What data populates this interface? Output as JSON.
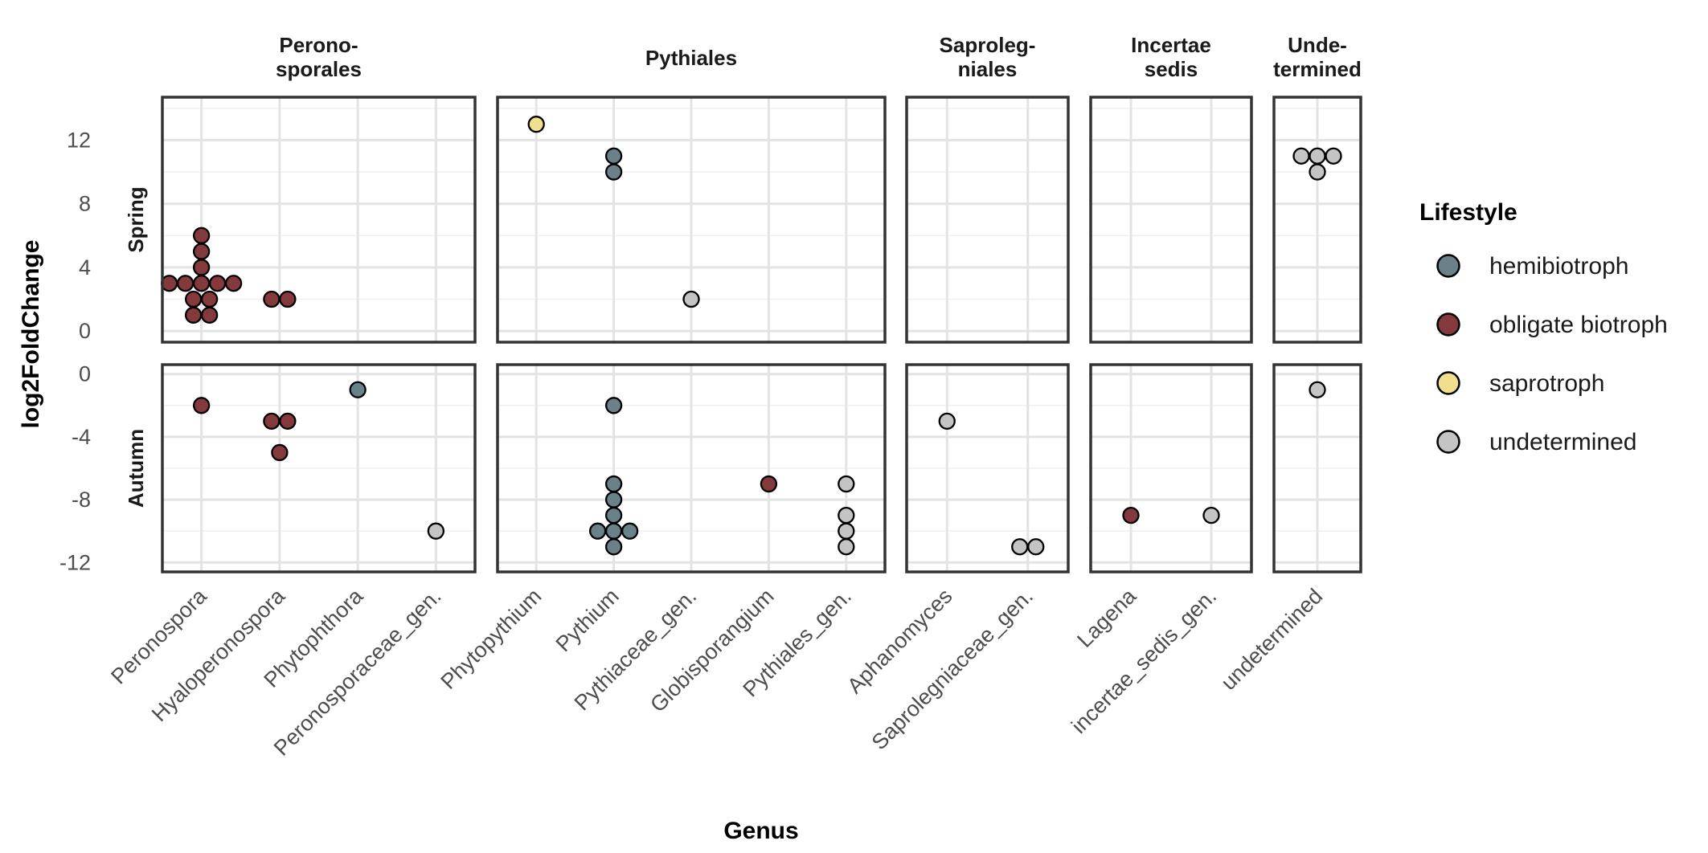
{
  "chart_data": {
    "type": "scatter",
    "xlabel": "Genus",
    "ylabel": "log2FoldChange",
    "legend": {
      "title": "Lifestyle",
      "placement": "right",
      "entries": [
        {
          "name": "hemibiotroph",
          "color": "#6b8189"
        },
        {
          "name": "obligate biotroph",
          "color": "#843a3c"
        },
        {
          "name": "saprotroph",
          "color": "#f0e08e"
        },
        {
          "name": "undetermined",
          "color": "#c4c4c4"
        }
      ]
    },
    "column_facets": [
      {
        "label": "Perono-\nsporales",
        "genera": [
          "Peronospora",
          "Hyaloperonospora",
          "Phytophthora",
          "Peronosporaceae_gen."
        ]
      },
      {
        "label": "Pythiales",
        "genera": [
          "Phytopythium",
          "Pythium",
          "Pythiaceae_gen.",
          "Globisporangium",
          "Pythiales_gen."
        ]
      },
      {
        "label": "Saproleg-\nniales",
        "genera": [
          "Aphanomyces",
          "Saprolegniaceae_gen."
        ]
      },
      {
        "label": "Incertae\nsedis",
        "genera": [
          "Lagena",
          "incertae_sedis_gen."
        ]
      },
      {
        "label": "Unde-\ntermined",
        "genera": [
          "undetermined"
        ]
      }
    ],
    "row_facets": [
      {
        "label": "Spring",
        "ylim": [
          0,
          14
        ],
        "yticks": [
          0,
          4,
          8,
          12
        ]
      },
      {
        "label": "Autumn",
        "ylim": [
          -12,
          0
        ],
        "yticks": [
          0,
          -4,
          -8,
          -12
        ]
      }
    ],
    "points": [
      {
        "season": "Spring",
        "genus": "Peronospora",
        "y": 6,
        "lifestyle": "obligate biotroph"
      },
      {
        "season": "Spring",
        "genus": "Peronospora",
        "y": 5,
        "lifestyle": "obligate biotroph"
      },
      {
        "season": "Spring",
        "genus": "Peronospora",
        "y": 4,
        "lifestyle": "obligate biotroph"
      },
      {
        "season": "Spring",
        "genus": "Peronospora",
        "y": 3,
        "lifestyle": "obligate biotroph"
      },
      {
        "season": "Spring",
        "genus": "Peronospora",
        "y": 3,
        "lifestyle": "obligate biotroph"
      },
      {
        "season": "Spring",
        "genus": "Peronospora",
        "y": 3,
        "lifestyle": "obligate biotroph"
      },
      {
        "season": "Spring",
        "genus": "Peronospora",
        "y": 3,
        "lifestyle": "obligate biotroph"
      },
      {
        "season": "Spring",
        "genus": "Peronospora",
        "y": 3,
        "lifestyle": "obligate biotroph"
      },
      {
        "season": "Spring",
        "genus": "Peronospora",
        "y": 2,
        "lifestyle": "obligate biotroph"
      },
      {
        "season": "Spring",
        "genus": "Peronospora",
        "y": 2,
        "lifestyle": "obligate biotroph"
      },
      {
        "season": "Spring",
        "genus": "Peronospora",
        "y": 1,
        "lifestyle": "obligate biotroph"
      },
      {
        "season": "Spring",
        "genus": "Peronospora",
        "y": 1,
        "lifestyle": "obligate biotroph"
      },
      {
        "season": "Spring",
        "genus": "Hyaloperonospora",
        "y": 2,
        "lifestyle": "obligate biotroph"
      },
      {
        "season": "Spring",
        "genus": "Hyaloperonospora",
        "y": 2,
        "lifestyle": "obligate biotroph"
      },
      {
        "season": "Spring",
        "genus": "Phytopythium",
        "y": 13,
        "lifestyle": "saprotroph"
      },
      {
        "season": "Spring",
        "genus": "Pythium",
        "y": 11,
        "lifestyle": "hemibiotroph"
      },
      {
        "season": "Spring",
        "genus": "Pythium",
        "y": 10,
        "lifestyle": "hemibiotroph"
      },
      {
        "season": "Spring",
        "genus": "Pythiaceae_gen.",
        "y": 2,
        "lifestyle": "undetermined"
      },
      {
        "season": "Spring",
        "genus": "undetermined",
        "y": 11,
        "lifestyle": "undetermined"
      },
      {
        "season": "Spring",
        "genus": "undetermined",
        "y": 11,
        "lifestyle": "undetermined"
      },
      {
        "season": "Spring",
        "genus": "undetermined",
        "y": 11,
        "lifestyle": "undetermined"
      },
      {
        "season": "Spring",
        "genus": "undetermined",
        "y": 10,
        "lifestyle": "undetermined"
      },
      {
        "season": "Autumn",
        "genus": "Peronospora",
        "y": -2,
        "lifestyle": "obligate biotroph"
      },
      {
        "season": "Autumn",
        "genus": "Hyaloperonospora",
        "y": -3,
        "lifestyle": "obligate biotroph"
      },
      {
        "season": "Autumn",
        "genus": "Hyaloperonospora",
        "y": -3,
        "lifestyle": "obligate biotroph"
      },
      {
        "season": "Autumn",
        "genus": "Hyaloperonospora",
        "y": -5,
        "lifestyle": "obligate biotroph"
      },
      {
        "season": "Autumn",
        "genus": "Phytophthora",
        "y": -1,
        "lifestyle": "hemibiotroph"
      },
      {
        "season": "Autumn",
        "genus": "Peronosporaceae_gen.",
        "y": -10,
        "lifestyle": "undetermined"
      },
      {
        "season": "Autumn",
        "genus": "Pythium",
        "y": -2,
        "lifestyle": "hemibiotroph"
      },
      {
        "season": "Autumn",
        "genus": "Pythium",
        "y": -7,
        "lifestyle": "hemibiotroph"
      },
      {
        "season": "Autumn",
        "genus": "Pythium",
        "y": -8,
        "lifestyle": "hemibiotroph"
      },
      {
        "season": "Autumn",
        "genus": "Pythium",
        "y": -9,
        "lifestyle": "hemibiotroph"
      },
      {
        "season": "Autumn",
        "genus": "Pythium",
        "y": -10,
        "lifestyle": "hemibiotroph"
      },
      {
        "season": "Autumn",
        "genus": "Pythium",
        "y": -10,
        "lifestyle": "hemibiotroph"
      },
      {
        "season": "Autumn",
        "genus": "Pythium",
        "y": -10,
        "lifestyle": "hemibiotroph"
      },
      {
        "season": "Autumn",
        "genus": "Pythium",
        "y": -11,
        "lifestyle": "hemibiotroph"
      },
      {
        "season": "Autumn",
        "genus": "Globisporangium",
        "y": -7,
        "lifestyle": "obligate biotroph"
      },
      {
        "season": "Autumn",
        "genus": "Pythiales_gen.",
        "y": -7,
        "lifestyle": "undetermined"
      },
      {
        "season": "Autumn",
        "genus": "Pythiales_gen.",
        "y": -9,
        "lifestyle": "undetermined"
      },
      {
        "season": "Autumn",
        "genus": "Pythiales_gen.",
        "y": -10,
        "lifestyle": "undetermined"
      },
      {
        "season": "Autumn",
        "genus": "Pythiales_gen.",
        "y": -11,
        "lifestyle": "undetermined"
      },
      {
        "season": "Autumn",
        "genus": "Aphanomyces",
        "y": -3,
        "lifestyle": "undetermined"
      },
      {
        "season": "Autumn",
        "genus": "Saprolegniaceae_gen.",
        "y": -11,
        "lifestyle": "undetermined"
      },
      {
        "season": "Autumn",
        "genus": "Saprolegniaceae_gen.",
        "y": -11,
        "lifestyle": "undetermined"
      },
      {
        "season": "Autumn",
        "genus": "Lagena",
        "y": -9,
        "lifestyle": "obligate biotroph"
      },
      {
        "season": "Autumn",
        "genus": "incertae_sedis_gen.",
        "y": -9,
        "lifestyle": "undetermined"
      },
      {
        "season": "Autumn",
        "genus": "undetermined",
        "y": -1,
        "lifestyle": "undetermined"
      }
    ]
  }
}
